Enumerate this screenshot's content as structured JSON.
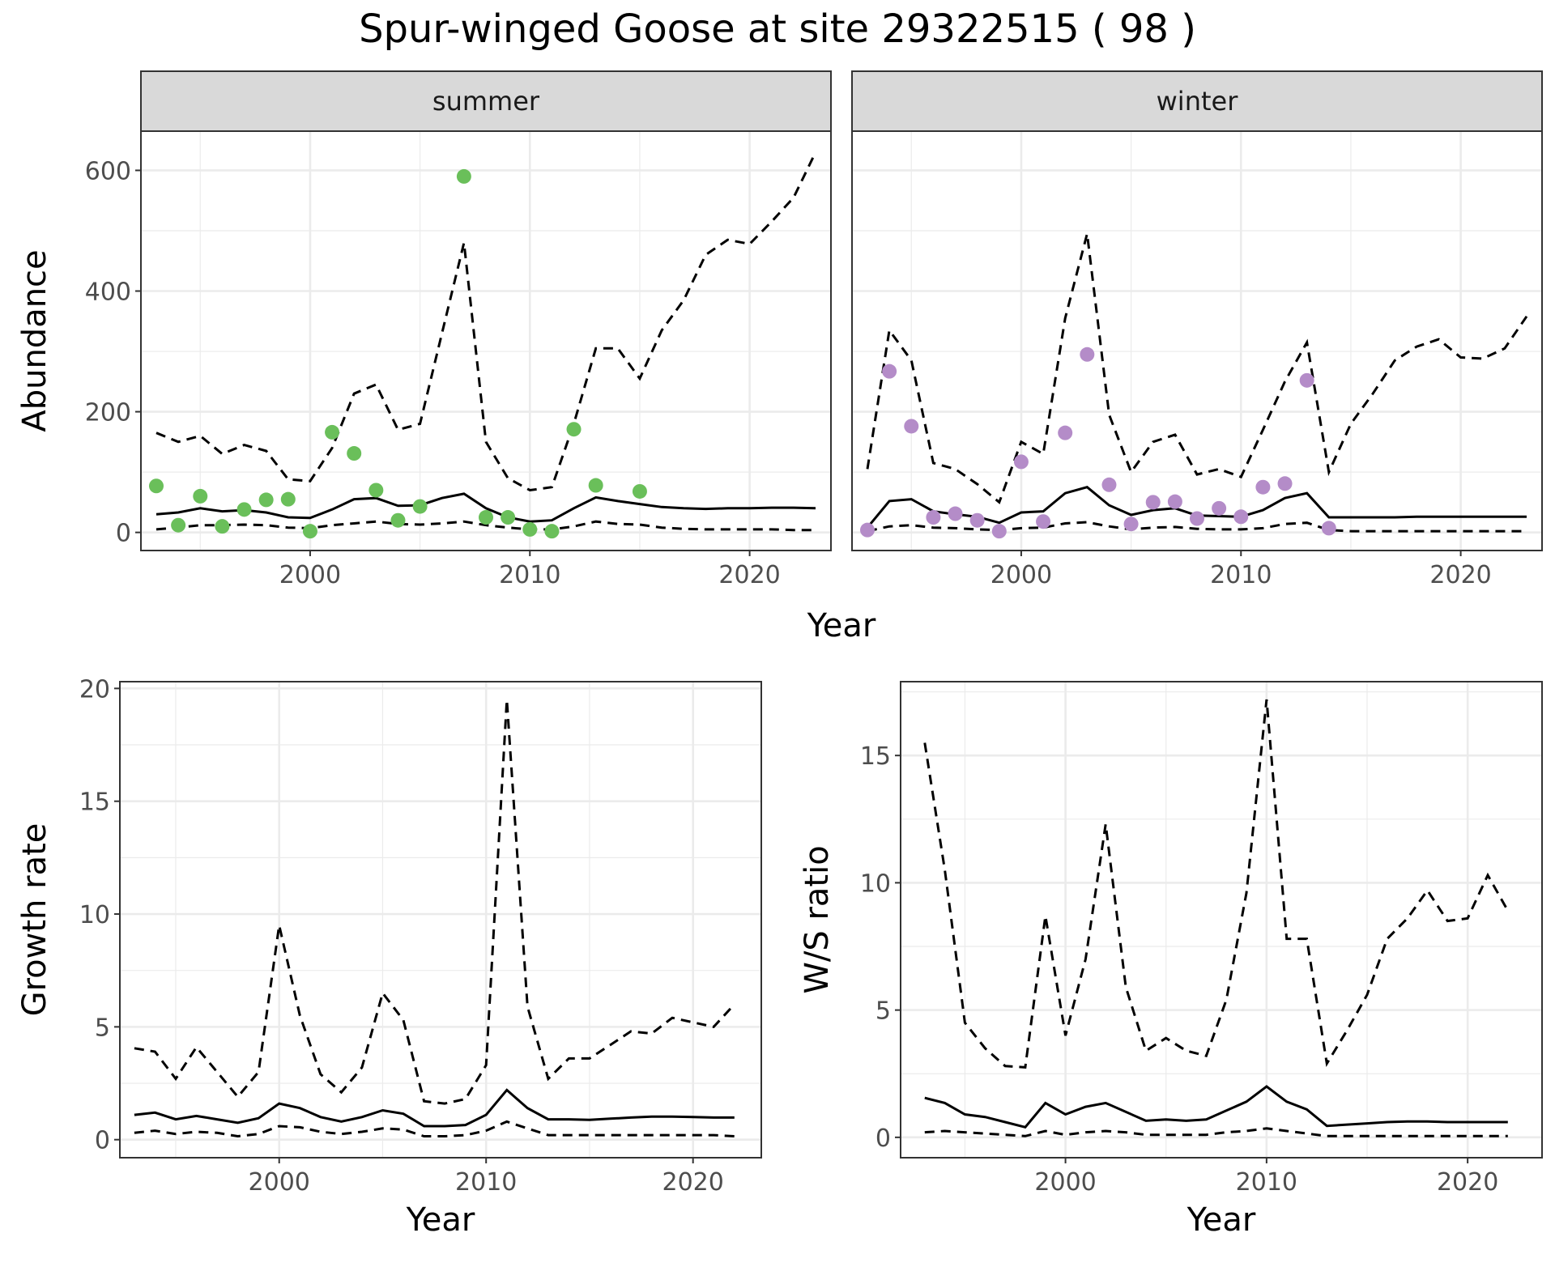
{
  "title": "Spur-winged Goose at site 29322515 ( 98 )",
  "colors": {
    "summer_points": "#6abf5a",
    "winter_points": "#b48cc8",
    "strip_bg": "#d9d9d9",
    "line": "#000000",
    "grid": "#ebebeb"
  },
  "chart_data": [
    {
      "type": "line",
      "name": "Abundance",
      "facets": [
        "summer",
        "winter"
      ],
      "xlabel": "Year",
      "ylabel": "Abundance",
      "xlim": [
        1992.3,
        2023.7
      ],
      "ylim": [
        -30,
        665
      ],
      "xticks": [
        2000,
        2010,
        2020
      ],
      "yticks": [
        0,
        200,
        400,
        600
      ],
      "grid": true,
      "panels": {
        "summer": {
          "points": {
            "x": [
              1993,
              1994,
              1995,
              1996,
              1997,
              1998,
              1999,
              2000,
              2001,
              2002,
              2003,
              2004,
              2005,
              2007,
              2008,
              2009,
              2010,
              2011,
              2012,
              2013,
              2015
            ],
            "y": [
              77,
              12,
              60,
              10,
              38,
              54,
              55,
              2,
              166,
              131,
              70,
              20,
              43,
              590,
              25,
              25,
              5,
              2,
              171,
              78,
              68
            ]
          },
          "mean": {
            "x": [
              1993,
              1994,
              1995,
              1996,
              1997,
              1998,
              1999,
              2000,
              2001,
              2002,
              2003,
              2004,
              2005,
              2006,
              2007,
              2008,
              2009,
              2010,
              2011,
              2012,
              2013,
              2014,
              2015,
              2016,
              2017,
              2018,
              2019,
              2020,
              2021,
              2022,
              2023
            ],
            "y": [
              30,
              33,
              40,
              35,
              37,
              33,
              25,
              24,
              38,
              55,
              57,
              44,
              45,
              57,
              64,
              40,
              25,
              18,
              20,
              40,
              58,
              52,
              47,
              42,
              40,
              39,
              40,
              40,
              41,
              41,
              40
            ]
          },
          "upper": {
            "x": [
              1993,
              1994,
              1995,
              1996,
              1997,
              1998,
              1999,
              2000,
              2001,
              2002,
              2003,
              2004,
              2005,
              2006,
              2007,
              2008,
              2009,
              2010,
              2011,
              2012,
              2013,
              2014,
              2015,
              2016,
              2017,
              2018,
              2019,
              2020,
              2021,
              2022,
              2023
            ],
            "y": [
              165,
              150,
              160,
              130,
              145,
              135,
              88,
              85,
              140,
              230,
              245,
              170,
              180,
              330,
              480,
              150,
              90,
              70,
              75,
              180,
              305,
              305,
              255,
              335,
              385,
              460,
              485,
              478,
              515,
              555,
              630
            ]
          },
          "lower": {
            "x": [
              1993,
              1994,
              1995,
              1996,
              1997,
              1998,
              1999,
              2000,
              2001,
              2002,
              2003,
              2004,
              2005,
              2006,
              2007,
              2008,
              2009,
              2010,
              2011,
              2012,
              2013,
              2014,
              2015,
              2016,
              2017,
              2018,
              2019,
              2020,
              2021,
              2022,
              2023
            ],
            "y": [
              5,
              8,
              12,
              12,
              13,
              12,
              8,
              7,
              12,
              15,
              18,
              14,
              13,
              15,
              18,
              12,
              8,
              5,
              5,
              10,
              18,
              14,
              13,
              8,
              6,
              5,
              5,
              5,
              5,
              4,
              4
            ]
          }
        },
        "winter": {
          "points": {
            "x": [
              1993,
              1994,
              1995,
              1996,
              1997,
              1998,
              1999,
              2000,
              2001,
              2002,
              2003,
              2004,
              2005,
              2006,
              2007,
              2008,
              2009,
              2010,
              2011,
              2012,
              2013,
              2014
            ],
            "y": [
              4,
              267,
              176,
              25,
              31,
              20,
              2,
              117,
              18,
              165,
              295,
              79,
              14,
              50,
              51,
              23,
              40,
              26,
              75,
              81,
              252,
              7
            ]
          },
          "mean": {
            "x": [
              1993,
              1994,
              1995,
              1996,
              1997,
              1998,
              1999,
              2000,
              2001,
              2002,
              2003,
              2004,
              2005,
              2006,
              2007,
              2008,
              2009,
              2010,
              2011,
              2012,
              2013,
              2014,
              2015,
              2016,
              2017,
              2018,
              2019,
              2020,
              2021,
              2022,
              2023
            ],
            "y": [
              8,
              52,
              55,
              35,
              30,
              26,
              16,
              33,
              35,
              65,
              75,
              45,
              29,
              37,
              40,
              28,
              27,
              26,
              37,
              57,
              65,
              25,
              25,
              25,
              25,
              26,
              26,
              26,
              26,
              26,
              26
            ]
          },
          "upper": {
            "x": [
              1993,
              1994,
              1995,
              1996,
              1997,
              1998,
              1999,
              2000,
              2001,
              2002,
              2003,
              2004,
              2005,
              2006,
              2007,
              2008,
              2009,
              2010,
              2011,
              2012,
              2013,
              2014,
              2015,
              2016,
              2017,
              2018,
              2019,
              2020,
              2021,
              2022,
              2023
            ],
            "y": [
              105,
              335,
              285,
              115,
              105,
              80,
              50,
              150,
              130,
              355,
              495,
              195,
              100,
              150,
              162,
              96,
              105,
              92,
              170,
              250,
              315,
              100,
              180,
              230,
              285,
              308,
              320,
              290,
              288,
              305,
              358
            ]
          },
          "lower": {
            "x": [
              1993,
              1994,
              1995,
              1996,
              1997,
              1998,
              1999,
              2000,
              2001,
              2002,
              2003,
              2004,
              2005,
              2006,
              2007,
              2008,
              2009,
              2010,
              2011,
              2012,
              2013,
              2014,
              2015,
              2016,
              2017,
              2018,
              2019,
              2020,
              2021,
              2022,
              2023
            ],
            "y": [
              2,
              10,
              12,
              8,
              7,
              5,
              4,
              7,
              8,
              15,
              17,
              10,
              5,
              8,
              9,
              6,
              5,
              5,
              7,
              14,
              16,
              4,
              2,
              2,
              2,
              2,
              2,
              2,
              2,
              2,
              2
            ]
          }
        }
      }
    },
    {
      "type": "line",
      "name": "Growth rate",
      "xlabel": "Year",
      "ylabel": "Growth rate",
      "xlim": [
        1992.3,
        2023.3
      ],
      "ylim": [
        -0.8,
        20.3
      ],
      "xticks": [
        2000,
        2010,
        2020
      ],
      "yticks": [
        0,
        5,
        10,
        15,
        20
      ],
      "grid": true,
      "mean": {
        "x": [
          1993,
          1994,
          1995,
          1996,
          1997,
          1998,
          1999,
          2000,
          2001,
          2002,
          2003,
          2004,
          2005,
          2006,
          2007,
          2008,
          2009,
          2010,
          2011,
          2012,
          2013,
          2014,
          2015,
          2016,
          2017,
          2018,
          2019,
          2020,
          2021,
          2022
        ],
        "y": [
          1.1,
          1.2,
          0.9,
          1.05,
          0.9,
          0.75,
          0.95,
          1.6,
          1.4,
          1.0,
          0.8,
          1.0,
          1.3,
          1.15,
          0.6,
          0.6,
          0.65,
          1.1,
          2.2,
          1.4,
          0.9,
          0.9,
          0.88,
          0.93,
          0.98,
          1.02,
          1.02,
          1.0,
          0.98,
          0.98
        ]
      },
      "upper": {
        "x": [
          1993,
          1994,
          1995,
          1996,
          1997,
          1998,
          1999,
          2000,
          2001,
          2002,
          2003,
          2004,
          2005,
          2006,
          2007,
          2008,
          2009,
          2010,
          2011,
          2012,
          2013,
          2014,
          2015,
          2016,
          2017,
          2018,
          2019,
          2020,
          2021,
          2022
        ],
        "y": [
          4.05,
          3.9,
          2.7,
          4.1,
          3.0,
          1.9,
          3.0,
          9.5,
          5.5,
          2.9,
          2.1,
          3.2,
          6.5,
          5.3,
          1.7,
          1.6,
          1.8,
          3.3,
          19.5,
          5.9,
          2.7,
          3.6,
          3.6,
          4.2,
          4.8,
          4.7,
          5.4,
          5.2,
          5.0,
          6.0
        ]
      },
      "lower": {
        "x": [
          1993,
          1994,
          1995,
          1996,
          1997,
          1998,
          1999,
          2000,
          2001,
          2002,
          2003,
          2004,
          2005,
          2006,
          2007,
          2008,
          2009,
          2010,
          2011,
          2012,
          2013,
          2014,
          2015,
          2016,
          2017,
          2018,
          2019,
          2020,
          2021,
          2022
        ],
        "y": [
          0.3,
          0.4,
          0.25,
          0.35,
          0.3,
          0.15,
          0.25,
          0.6,
          0.55,
          0.35,
          0.25,
          0.35,
          0.5,
          0.45,
          0.15,
          0.15,
          0.2,
          0.4,
          0.8,
          0.5,
          0.2,
          0.2,
          0.2,
          0.2,
          0.2,
          0.2,
          0.2,
          0.2,
          0.2,
          0.15
        ]
      }
    },
    {
      "type": "line",
      "name": "W/S ratio",
      "xlabel": "Year",
      "ylabel": "W/S ratio",
      "xlim": [
        1991.8,
        2023.7
      ],
      "ylim": [
        -0.8,
        17.9
      ],
      "xticks": [
        2000,
        2010,
        2020
      ],
      "yticks": [
        0,
        5,
        10,
        15
      ],
      "grid": true,
      "mean": {
        "x": [
          1993,
          1994,
          1995,
          1996,
          1997,
          1998,
          1999,
          2000,
          2001,
          2002,
          2003,
          2004,
          2005,
          2006,
          2007,
          2008,
          2009,
          2010,
          2011,
          2012,
          2013,
          2014,
          2015,
          2016,
          2017,
          2018,
          2019,
          2020,
          2021,
          2022
        ],
        "y": [
          1.55,
          1.35,
          0.9,
          0.8,
          0.6,
          0.4,
          1.35,
          0.9,
          1.2,
          1.35,
          1.0,
          0.65,
          0.7,
          0.65,
          0.7,
          1.05,
          1.4,
          2.0,
          1.4,
          1.1,
          0.45,
          0.5,
          0.55,
          0.6,
          0.62,
          0.62,
          0.6,
          0.6,
          0.6,
          0.6
        ]
      },
      "upper": {
        "x": [
          1993,
          1994,
          1995,
          1996,
          1997,
          1998,
          1999,
          2000,
          2001,
          2002,
          2003,
          2004,
          2005,
          2006,
          2007,
          2008,
          2009,
          2010,
          2011,
          2012,
          2013,
          2014,
          2015,
          2016,
          2017,
          2018,
          2019,
          2020,
          2021,
          2022
        ],
        "y": [
          15.5,
          10.5,
          4.5,
          3.5,
          2.8,
          2.75,
          8.7,
          4.0,
          7.0,
          12.3,
          5.9,
          3.4,
          3.9,
          3.4,
          3.2,
          5.4,
          9.6,
          17.2,
          7.8,
          7.8,
          2.9,
          4.2,
          5.6,
          7.8,
          8.6,
          9.7,
          8.5,
          8.6,
          10.3,
          8.9
        ]
      },
      "lower": {
        "x": [
          1993,
          1994,
          1995,
          1996,
          1997,
          1998,
          1999,
          2000,
          2001,
          2002,
          2003,
          2004,
          2005,
          2006,
          2007,
          2008,
          2009,
          2010,
          2011,
          2012,
          2013,
          2014,
          2015,
          2016,
          2017,
          2018,
          2019,
          2020,
          2021,
          2022
        ],
        "y": [
          0.2,
          0.25,
          0.2,
          0.15,
          0.1,
          0.05,
          0.25,
          0.1,
          0.2,
          0.25,
          0.2,
          0.1,
          0.1,
          0.1,
          0.1,
          0.2,
          0.25,
          0.35,
          0.25,
          0.15,
          0.05,
          0.05,
          0.05,
          0.05,
          0.05,
          0.05,
          0.05,
          0.05,
          0.05,
          0.05
        ]
      }
    }
  ]
}
